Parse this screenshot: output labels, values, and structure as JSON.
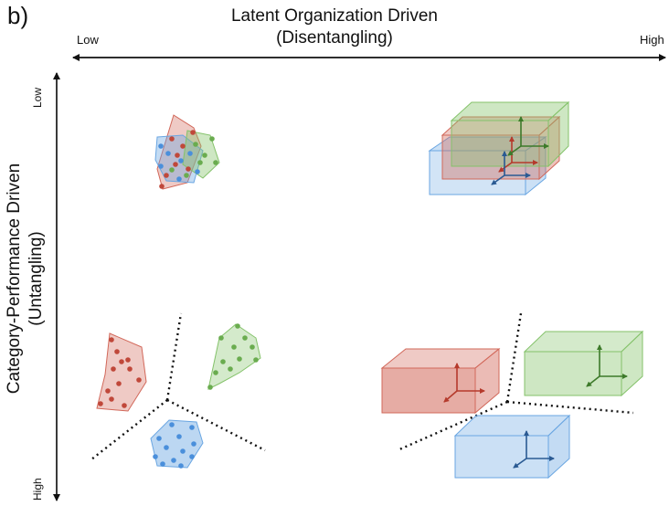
{
  "panel_label": "b)",
  "x_axis": {
    "title_line1": "Latent Organization Driven",
    "title_line2": "(Disentangling)",
    "low_label": "Low",
    "high_label": "High"
  },
  "y_axis": {
    "title_line1": "Category-Performance Driven",
    "title_line2": "(Untangling)",
    "low_label": "Low",
    "high_label": "High"
  },
  "colors": {
    "red": "#d2685a",
    "green": "#84c26a",
    "blue": "#6aa6e2",
    "axis": "#111111"
  },
  "quadrants": [
    {
      "name": "top-left",
      "description_icon": "tangled-point-clouds"
    },
    {
      "name": "top-right",
      "description_icon": "overlapping-boxes-with-axes"
    },
    {
      "name": "bottom-left",
      "description_icon": "separated-point-clouds"
    },
    {
      "name": "bottom-right",
      "description_icon": "separated-boxes-with-axes"
    }
  ]
}
